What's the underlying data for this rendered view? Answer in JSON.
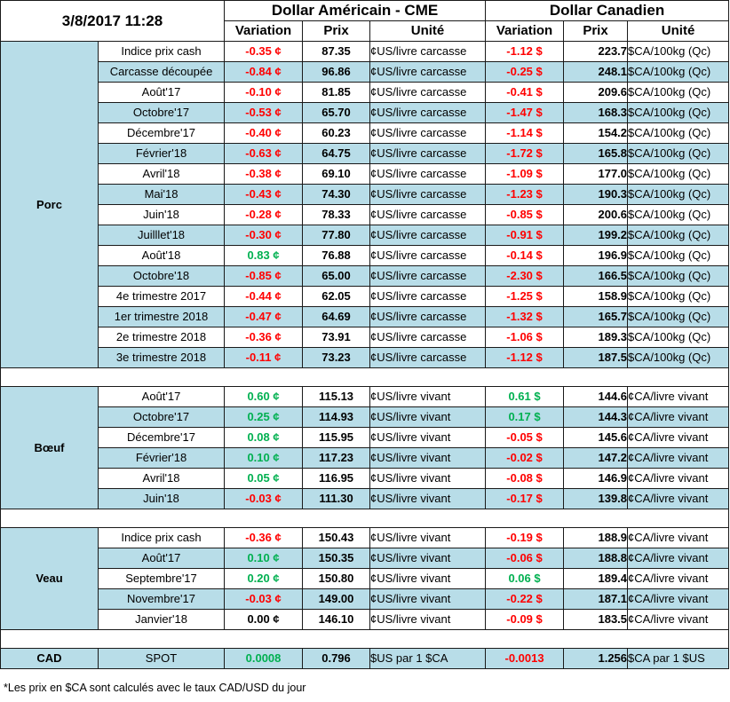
{
  "header": {
    "date": "3/8/2017 11:28",
    "usd_group": "Dollar Américain - CME",
    "cad_group": "Dollar Canadien",
    "col_variation": "Variation",
    "col_prix": "Prix",
    "col_unite": "Unité"
  },
  "colors": {
    "negative": "#ff0000",
    "positive": "#00b050",
    "band": "#b8dde8"
  },
  "sections": [
    {
      "name": "Porc",
      "rows": [
        {
          "label": "Indice prix cash",
          "usd_var": "-0.35 ¢",
          "usd_sign": "neg",
          "usd_prix": "87.35",
          "usd_unit": "¢US/livre carcasse",
          "cad_var": "-1.12 $",
          "cad_sign": "neg",
          "cad_prix": "223.7",
          "cad_unit": "$CA/100kg (Qc)"
        },
        {
          "label": "Carcasse découpée",
          "usd_var": "-0.84 ¢",
          "usd_sign": "neg",
          "usd_prix": "96.86",
          "usd_unit": "¢US/livre carcasse",
          "cad_var": "-0.25 $",
          "cad_sign": "neg",
          "cad_prix": "248.1",
          "cad_unit": "$CA/100kg (Qc)"
        },
        {
          "label": "Août'17",
          "usd_var": "-0.10 ¢",
          "usd_sign": "neg",
          "usd_prix": "81.85",
          "usd_unit": "¢US/livre carcasse",
          "cad_var": "-0.41 $",
          "cad_sign": "neg",
          "cad_prix": "209.6",
          "cad_unit": "$CA/100kg (Qc)"
        },
        {
          "label": "Octobre'17",
          "usd_var": "-0.53 ¢",
          "usd_sign": "neg",
          "usd_prix": "65.70",
          "usd_unit": "¢US/livre carcasse",
          "cad_var": "-1.47 $",
          "cad_sign": "neg",
          "cad_prix": "168.3",
          "cad_unit": "$CA/100kg (Qc)"
        },
        {
          "label": "Décembre'17",
          "usd_var": "-0.40 ¢",
          "usd_sign": "neg",
          "usd_prix": "60.23",
          "usd_unit": "¢US/livre carcasse",
          "cad_var": "-1.14 $",
          "cad_sign": "neg",
          "cad_prix": "154.2",
          "cad_unit": "$CA/100kg (Qc)"
        },
        {
          "label": "Février'18",
          "usd_var": "-0.63 ¢",
          "usd_sign": "neg",
          "usd_prix": "64.75",
          "usd_unit": "¢US/livre carcasse",
          "cad_var": "-1.72 $",
          "cad_sign": "neg",
          "cad_prix": "165.8",
          "cad_unit": "$CA/100kg (Qc)"
        },
        {
          "label": "Avril'18",
          "usd_var": "-0.38 ¢",
          "usd_sign": "neg",
          "usd_prix": "69.10",
          "usd_unit": "¢US/livre carcasse",
          "cad_var": "-1.09 $",
          "cad_sign": "neg",
          "cad_prix": "177.0",
          "cad_unit": "$CA/100kg (Qc)"
        },
        {
          "label": "Mai'18",
          "usd_var": "-0.43 ¢",
          "usd_sign": "neg",
          "usd_prix": "74.30",
          "usd_unit": "¢US/livre carcasse",
          "cad_var": "-1.23 $",
          "cad_sign": "neg",
          "cad_prix": "190.3",
          "cad_unit": "$CA/100kg (Qc)"
        },
        {
          "label": "Juin'18",
          "usd_var": "-0.28 ¢",
          "usd_sign": "neg",
          "usd_prix": "78.33",
          "usd_unit": "¢US/livre carcasse",
          "cad_var": "-0.85 $",
          "cad_sign": "neg",
          "cad_prix": "200.6",
          "cad_unit": "$CA/100kg (Qc)"
        },
        {
          "label": "Juilllet'18",
          "usd_var": "-0.30 ¢",
          "usd_sign": "neg",
          "usd_prix": "77.80",
          "usd_unit": "¢US/livre carcasse",
          "cad_var": "-0.91 $",
          "cad_sign": "neg",
          "cad_prix": "199.2",
          "cad_unit": "$CA/100kg (Qc)"
        },
        {
          "label": "Août'18",
          "usd_var": "0.83 ¢",
          "usd_sign": "pos",
          "usd_prix": "76.88",
          "usd_unit": "¢US/livre carcasse",
          "cad_var": "-0.14 $",
          "cad_sign": "neg",
          "cad_prix": "196.9",
          "cad_unit": "$CA/100kg (Qc)"
        },
        {
          "label": "Octobre'18",
          "usd_var": "-0.85 ¢",
          "usd_sign": "neg",
          "usd_prix": "65.00",
          "usd_unit": "¢US/livre carcasse",
          "cad_var": "-2.30 $",
          "cad_sign": "neg",
          "cad_prix": "166.5",
          "cad_unit": "$CA/100kg (Qc)"
        },
        {
          "label": "4e trimestre 2017",
          "usd_var": "-0.44 ¢",
          "usd_sign": "neg",
          "usd_prix": "62.05",
          "usd_unit": "¢US/livre carcasse",
          "cad_var": "-1.25 $",
          "cad_sign": "neg",
          "cad_prix": "158.9",
          "cad_unit": "$CA/100kg (Qc)"
        },
        {
          "label": "1er trimestre 2018",
          "usd_var": "-0.47 ¢",
          "usd_sign": "neg",
          "usd_prix": "64.69",
          "usd_unit": "¢US/livre carcasse",
          "cad_var": "-1.32 $",
          "cad_sign": "neg",
          "cad_prix": "165.7",
          "cad_unit": "$CA/100kg (Qc)"
        },
        {
          "label": "2e trimestre 2018",
          "usd_var": "-0.36 ¢",
          "usd_sign": "neg",
          "usd_prix": "73.91",
          "usd_unit": "¢US/livre carcasse",
          "cad_var": "-1.06 $",
          "cad_sign": "neg",
          "cad_prix": "189.3",
          "cad_unit": "$CA/100kg (Qc)"
        },
        {
          "label": "3e trimestre 2018",
          "usd_var": "-0.11 ¢",
          "usd_sign": "neg",
          "usd_prix": "73.23",
          "usd_unit": "¢US/livre carcasse",
          "cad_var": "-1.12 $",
          "cad_sign": "neg",
          "cad_prix": "187.5",
          "cad_unit": "$CA/100kg (Qc)"
        }
      ]
    },
    {
      "name": "Bœuf",
      "rows": [
        {
          "label": "Août'17",
          "usd_var": "0.60 ¢",
          "usd_sign": "pos",
          "usd_prix": "115.13",
          "usd_unit": "¢US/livre vivant",
          "cad_var": "0.61 $",
          "cad_sign": "pos",
          "cad_prix": "144.6",
          "cad_unit": "¢CA/livre vivant"
        },
        {
          "label": "Octobre'17",
          "usd_var": "0.25 ¢",
          "usd_sign": "pos",
          "usd_prix": "114.93",
          "usd_unit": "¢US/livre vivant",
          "cad_var": "0.17 $",
          "cad_sign": "pos",
          "cad_prix": "144.3",
          "cad_unit": "¢CA/livre vivant"
        },
        {
          "label": "Décembre'17",
          "usd_var": "0.08 ¢",
          "usd_sign": "pos",
          "usd_prix": "115.95",
          "usd_unit": "¢US/livre vivant",
          "cad_var": "-0.05 $",
          "cad_sign": "neg",
          "cad_prix": "145.6",
          "cad_unit": "¢CA/livre vivant"
        },
        {
          "label": "Février'18",
          "usd_var": "0.10 ¢",
          "usd_sign": "pos",
          "usd_prix": "117.23",
          "usd_unit": "¢US/livre vivant",
          "cad_var": "-0.02 $",
          "cad_sign": "neg",
          "cad_prix": "147.2",
          "cad_unit": "¢CA/livre vivant"
        },
        {
          "label": "Avril'18",
          "usd_var": "0.05 ¢",
          "usd_sign": "pos",
          "usd_prix": "116.95",
          "usd_unit": "¢US/livre vivant",
          "cad_var": "-0.08 $",
          "cad_sign": "neg",
          "cad_prix": "146.9",
          "cad_unit": "¢CA/livre vivant"
        },
        {
          "label": "Juin'18",
          "usd_var": "-0.03 ¢",
          "usd_sign": "neg",
          "usd_prix": "111.30",
          "usd_unit": "¢US/livre vivant",
          "cad_var": "-0.17 $",
          "cad_sign": "neg",
          "cad_prix": "139.8",
          "cad_unit": "¢CA/livre vivant"
        }
      ]
    },
    {
      "name": "Veau",
      "rows": [
        {
          "label": "Indice prix cash",
          "usd_var": "-0.36 ¢",
          "usd_sign": "neg",
          "usd_prix": "150.43",
          "usd_unit": "¢US/livre vivant",
          "cad_var": "-0.19 $",
          "cad_sign": "neg",
          "cad_prix": "188.9",
          "cad_unit": "¢CA/livre vivant"
        },
        {
          "label": "Août'17",
          "usd_var": "0.10 ¢",
          "usd_sign": "pos",
          "usd_prix": "150.35",
          "usd_unit": "¢US/livre vivant",
          "cad_var": "-0.06 $",
          "cad_sign": "neg",
          "cad_prix": "188.8",
          "cad_unit": "¢CA/livre vivant"
        },
        {
          "label": "Septembre'17",
          "usd_var": "0.20 ¢",
          "usd_sign": "pos",
          "usd_prix": "150.80",
          "usd_unit": "¢US/livre vivant",
          "cad_var": "0.06 $",
          "cad_sign": "pos",
          "cad_prix": "189.4",
          "cad_unit": "¢CA/livre vivant"
        },
        {
          "label": "Novembre'17",
          "usd_var": "-0.03 ¢",
          "usd_sign": "neg",
          "usd_prix": "149.00",
          "usd_unit": "¢US/livre vivant",
          "cad_var": "-0.22 $",
          "cad_sign": "neg",
          "cad_prix": "187.1",
          "cad_unit": "¢CA/livre vivant"
        },
        {
          "label": "Janvier'18",
          "usd_var": "0.00 ¢",
          "usd_sign": "zero",
          "usd_prix": "146.10",
          "usd_unit": "¢US/livre vivant",
          "cad_var": "-0.09 $",
          "cad_sign": "neg",
          "cad_prix": "183.5",
          "cad_unit": "¢CA/livre vivant"
        }
      ]
    }
  ],
  "cad": {
    "name": "CAD",
    "label": "SPOT",
    "usd_var": "0.0008",
    "usd_sign": "pos",
    "usd_prix": "0.796",
    "usd_unit": "$US par 1 $CA",
    "cad_var": "-0.0013",
    "cad_sign": "neg",
    "cad_prix": "1.256",
    "cad_unit": "$CA par 1 $US"
  },
  "footnote": "*Les  prix en $CA sont calculés avec le taux CAD/USD du jour"
}
